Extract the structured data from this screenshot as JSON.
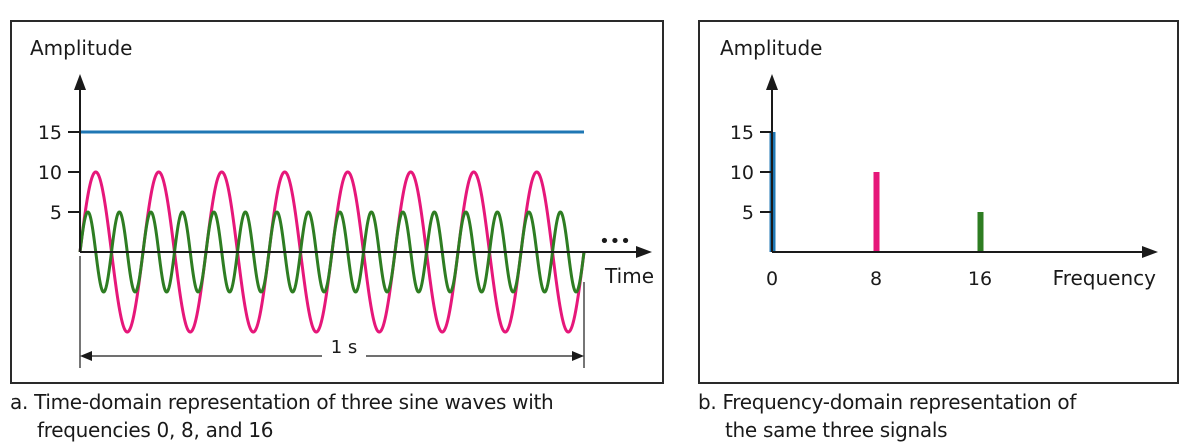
{
  "chart_data": [
    {
      "type": "line",
      "panel": "time-domain",
      "title": "",
      "ylabel": "Amplitude",
      "xlabel": "Time",
      "y_ticks": [
        5,
        10,
        15
      ],
      "duration_label": "1 s",
      "continuation_marker": "•••",
      "xlim": [
        0,
        1
      ],
      "series": [
        {
          "frequency": 0,
          "amplitude": 15,
          "color": "#1f77b4"
        },
        {
          "frequency": 8,
          "amplitude": 10,
          "color": "#e6177a"
        },
        {
          "frequency": 16,
          "amplitude": 5,
          "color": "#2e7d22"
        }
      ]
    },
    {
      "type": "bar",
      "panel": "frequency-domain",
      "title": "",
      "ylabel": "Amplitude",
      "xlabel": "Frequency",
      "y_ticks": [
        5,
        10,
        15
      ],
      "categories": [
        "0",
        "8",
        "16"
      ],
      "values": [
        15,
        10,
        5
      ],
      "colors": [
        "#1f77b4",
        "#e6177a",
        "#2e7d22"
      ]
    }
  ],
  "captions": {
    "a_line1": "a. Time-domain representation of three sine waves with",
    "a_line2": "frequencies 0, 8, and 16",
    "b_line1": "b. Frequency-domain representation of",
    "b_line2": "the same three signals"
  }
}
